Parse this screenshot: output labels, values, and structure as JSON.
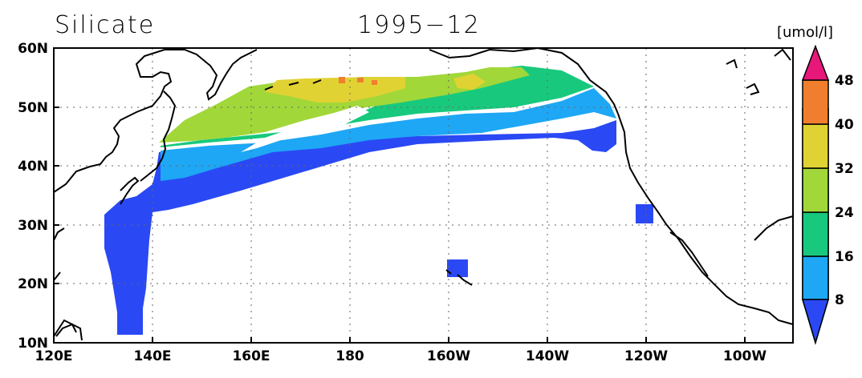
{
  "titles": {
    "variable": "Silicate",
    "date": "1995−12"
  },
  "colorbar": {
    "unit": "[umol/l]",
    "levels": [
      {
        "label": "48",
        "value": 48
      },
      {
        "label": "40",
        "value": 40
      },
      {
        "label": "32",
        "value": 32
      },
      {
        "label": "24",
        "value": 24
      },
      {
        "label": "16",
        "value": 16
      },
      {
        "label": "8",
        "value": 8
      }
    ],
    "colors": {
      "above48": "#e8177a",
      "40-48": "#ef7f2f",
      "32-40": "#e1d233",
      "24-32": "#a1d739",
      "16-24": "#18c97d",
      "8-16": "#1ea7f5",
      "below8": "#2a49f4"
    }
  },
  "axes": {
    "lon_ticks": [
      "120E",
      "140E",
      "160E",
      "180",
      "160W",
      "140W",
      "120W",
      "100W"
    ],
    "lat_ticks": [
      "60N",
      "50N",
      "40N",
      "30N",
      "20N",
      "10N"
    ],
    "lon_range": [
      120,
      270
    ],
    "lat_range": [
      10,
      60
    ],
    "grid": "dotted"
  }
}
